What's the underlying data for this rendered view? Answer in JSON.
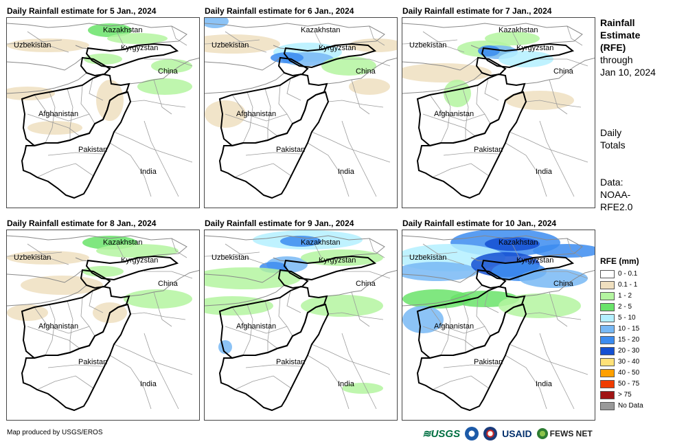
{
  "panels": [
    {
      "title": "Daily Rainfall estimate for 5 Jan., 2024"
    },
    {
      "title": "Daily Rainfall estimate for 6 Jan., 2024"
    },
    {
      "title": "Daily Rainfall estimate for 7 Jan., 2024"
    },
    {
      "title": "Daily Rainfall estimate for 8 Jan., 2024"
    },
    {
      "title": "Daily Rainfall estimate for 9 Jan., 2024"
    },
    {
      "title": "Daily Rainfall estimate for 10 Jan., 2024"
    }
  ],
  "map_labels": {
    "kazakhstan": "Kazakhstan",
    "uzbekistan": "Uzbekistan",
    "kyrgyzstan": "Kyrgyzstan",
    "china": "China",
    "afghanistan": "Afghanistan",
    "pakistan": "Pakistan",
    "india": "India"
  },
  "sidebar": {
    "title_line1": "Rainfall",
    "title_line2": "Estimate",
    "title_line3": "(RFE)",
    "through": "through",
    "date": "Jan 10, 2024",
    "daily_line1": "Daily",
    "daily_line2": "Totals",
    "data_line1": "Data:",
    "data_line2": "NOAA-",
    "data_line3": "RFE2.0"
  },
  "legend": {
    "title": "RFE (mm)",
    "items": [
      {
        "label": "0 - 0.1",
        "color": "#ffffff"
      },
      {
        "label": "0.1 - 1",
        "color": "#efdfbf"
      },
      {
        "label": "1 - 2",
        "color": "#b4f5a0"
      },
      {
        "label": "2 - 5",
        "color": "#6ae36a"
      },
      {
        "label": "5 - 10",
        "color": "#b4f0ff"
      },
      {
        "label": "10 - 15",
        "color": "#78b9f5"
      },
      {
        "label": "15 - 20",
        "color": "#3c8cf0"
      },
      {
        "label": "20 - 30",
        "color": "#1450d2"
      },
      {
        "label": "30 - 40",
        "color": "#ffe178"
      },
      {
        "label": "40 - 50",
        "color": "#ffa000"
      },
      {
        "label": "50 - 75",
        "color": "#f03c00"
      },
      {
        "label": "> 75",
        "color": "#a01414"
      },
      {
        "label": "No Data",
        "color": "#999999"
      }
    ]
  },
  "footer": {
    "credit": "Map produced by USGS/EROS"
  },
  "logos": {
    "usgs": "USGS",
    "usaid": "USAID",
    "fews": "FEWS NET"
  }
}
